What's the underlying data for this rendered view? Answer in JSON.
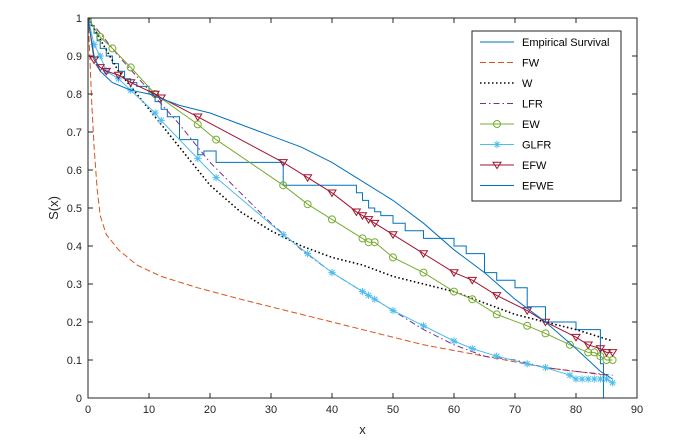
{
  "chart_data": {
    "type": "line",
    "title": "",
    "xlabel": "x",
    "ylabel": "S(x)",
    "xlim": [
      0,
      90
    ],
    "ylim": [
      0,
      1
    ],
    "xticks": [
      "0",
      "10",
      "20",
      "30",
      "40",
      "50",
      "60",
      "70",
      "80",
      "90"
    ],
    "yticks": [
      "0",
      "0.1",
      "0.2",
      "0.3",
      "0.4",
      "0.5",
      "0.6",
      "0.7",
      "0.8",
      "0.9",
      "1"
    ],
    "legend_position": "top-right",
    "series": [
      {
        "name": "Empirical Survival",
        "color": "#0072BD",
        "style": "step",
        "x": [
          0,
          0.5,
          1,
          1.5,
          2,
          3,
          4,
          5,
          6,
          7,
          8,
          10,
          11,
          12,
          13,
          15,
          18,
          19,
          21,
          25,
          26,
          32,
          35,
          44,
          45,
          46,
          47,
          48,
          50,
          52,
          55,
          60,
          62,
          65,
          67,
          70,
          72,
          75,
          80,
          84,
          84.5
        ],
        "y": [
          1,
          0.98,
          0.96,
          0.94,
          0.92,
          0.9,
          0.88,
          0.86,
          0.84,
          0.83,
          0.82,
          0.8,
          0.78,
          0.76,
          0.74,
          0.68,
          0.64,
          0.65,
          0.62,
          0.62,
          0.62,
          0.56,
          0.56,
          0.54,
          0.52,
          0.5,
          0.49,
          0.48,
          0.46,
          0.44,
          0.42,
          0.4,
          0.38,
          0.33,
          0.31,
          0.29,
          0.24,
          0.2,
          0.18,
          0.09,
          0
        ]
      },
      {
        "name": "FW",
        "color": "#D95319",
        "style": "dashed",
        "x": [
          0,
          0.3,
          0.6,
          1,
          1.5,
          2,
          3,
          5,
          8,
          12,
          18,
          25,
          35,
          45,
          55,
          65,
          75,
          85
        ],
        "y": [
          1,
          0.9,
          0.78,
          0.66,
          0.55,
          0.48,
          0.43,
          0.39,
          0.35,
          0.32,
          0.29,
          0.26,
          0.22,
          0.18,
          0.14,
          0.11,
          0.08,
          0.06
        ]
      },
      {
        "name": "W",
        "color": "#000000",
        "style": "dotted",
        "x": [
          0,
          5,
          10,
          15,
          20,
          25,
          30,
          35,
          40,
          45,
          50,
          55,
          60,
          65,
          70,
          75,
          80,
          86
        ],
        "y": [
          1,
          0.86,
          0.76,
          0.66,
          0.56,
          0.49,
          0.44,
          0.4,
          0.37,
          0.35,
          0.32,
          0.3,
          0.28,
          0.25,
          0.22,
          0.2,
          0.18,
          0.15
        ]
      },
      {
        "name": "LFR",
        "color": "#7E2F8E",
        "style": "dashdot",
        "x": [
          0,
          5,
          10,
          15,
          20,
          25,
          30,
          35,
          40,
          45,
          50,
          55,
          60,
          65,
          70,
          75,
          80,
          86
        ],
        "y": [
          1,
          0.9,
          0.81,
          0.72,
          0.62,
          0.54,
          0.46,
          0.39,
          0.33,
          0.28,
          0.23,
          0.18,
          0.14,
          0.11,
          0.1,
          0.08,
          0.07,
          0.06
        ]
      },
      {
        "name": "EW",
        "color": "#77AC30",
        "style": "solid-circle",
        "x": [
          0,
          2,
          4,
          7,
          11,
          18,
          21,
          32,
          36,
          40,
          45,
          46,
          47,
          50,
          55,
          60,
          63,
          67,
          72,
          75,
          79,
          82,
          83,
          84,
          85,
          86
        ],
        "y": [
          1,
          0.95,
          0.92,
          0.87,
          0.8,
          0.72,
          0.68,
          0.56,
          0.51,
          0.47,
          0.42,
          0.41,
          0.41,
          0.37,
          0.33,
          0.28,
          0.26,
          0.22,
          0.19,
          0.17,
          0.14,
          0.12,
          0.12,
          0.11,
          0.1,
          0.1
        ]
      },
      {
        "name": "GLFR",
        "color": "#4DBEEE",
        "style": "solid-star",
        "x": [
          0,
          1,
          2,
          3,
          5,
          7,
          11,
          12,
          18,
          21,
          32,
          36,
          40,
          45,
          46,
          47,
          50,
          55,
          60,
          63,
          67,
          72,
          75,
          79,
          80,
          81,
          82,
          83,
          84,
          85,
          86
        ],
        "y": [
          1,
          0.93,
          0.9,
          0.86,
          0.84,
          0.81,
          0.75,
          0.73,
          0.63,
          0.58,
          0.43,
          0.38,
          0.33,
          0.28,
          0.27,
          0.26,
          0.23,
          0.19,
          0.15,
          0.13,
          0.11,
          0.09,
          0.08,
          0.06,
          0.05,
          0.05,
          0.05,
          0.05,
          0.05,
          0.05,
          0.04
        ]
      },
      {
        "name": "EFW",
        "color": "#A2142F",
        "style": "solid-triangle",
        "x": [
          0,
          1,
          2,
          3,
          5,
          7,
          11,
          12,
          18,
          32,
          36,
          40,
          44,
          45,
          46,
          47,
          50,
          55,
          60,
          63,
          67,
          72,
          75,
          80,
          82,
          84,
          85,
          86
        ],
        "y": [
          1,
          0.89,
          0.87,
          0.86,
          0.85,
          0.83,
          0.8,
          0.79,
          0.74,
          0.62,
          0.58,
          0.54,
          0.49,
          0.48,
          0.47,
          0.46,
          0.43,
          0.38,
          0.33,
          0.31,
          0.27,
          0.23,
          0.2,
          0.16,
          0.14,
          0.13,
          0.12,
          0.12
        ]
      },
      {
        "name": "EFWE",
        "color": "#0072BD",
        "style": "solid",
        "x": [
          0,
          1,
          2,
          4,
          7,
          10,
          15,
          20,
          25,
          30,
          35,
          40,
          45,
          50,
          55,
          60,
          65,
          70,
          75,
          80,
          84,
          86
        ],
        "y": [
          1,
          0.9,
          0.86,
          0.83,
          0.81,
          0.8,
          0.77,
          0.75,
          0.72,
          0.69,
          0.66,
          0.62,
          0.57,
          0.52,
          0.46,
          0.39,
          0.33,
          0.26,
          0.2,
          0.13,
          0.07,
          0.05
        ]
      }
    ]
  }
}
